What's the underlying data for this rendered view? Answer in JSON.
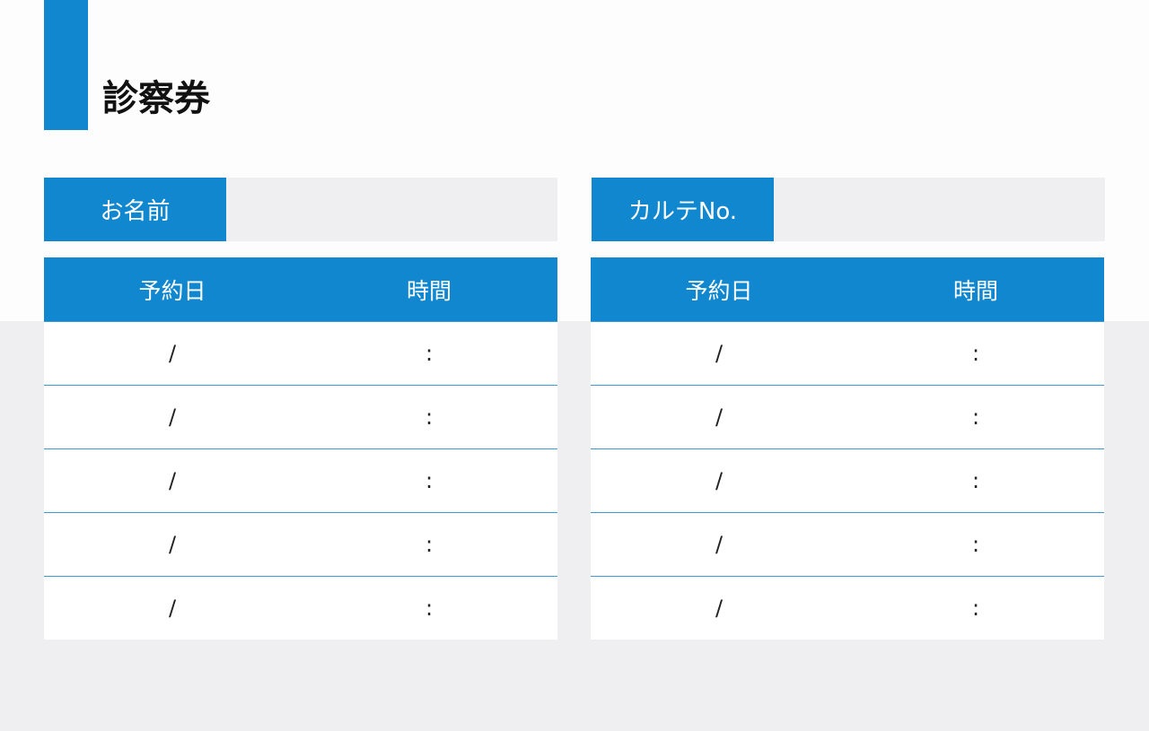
{
  "title": "診察券",
  "colors": {
    "accent": "#1187d0",
    "field_bg": "#efeef0"
  },
  "fields": [
    {
      "label": "お名前",
      "value": ""
    },
    {
      "label": "カルテNo.",
      "value": ""
    }
  ],
  "tables": [
    {
      "headers": [
        "予約日",
        "時間"
      ],
      "rows": [
        [
          "/",
          ":"
        ],
        [
          "/",
          ":"
        ],
        [
          "/",
          ":"
        ],
        [
          "/",
          ":"
        ],
        [
          "/",
          ":"
        ]
      ]
    },
    {
      "headers": [
        "予約日",
        "時間"
      ],
      "rows": [
        [
          "/",
          ":"
        ],
        [
          "/",
          ":"
        ],
        [
          "/",
          ":"
        ],
        [
          "/",
          ":"
        ],
        [
          "/",
          ":"
        ]
      ]
    }
  ]
}
